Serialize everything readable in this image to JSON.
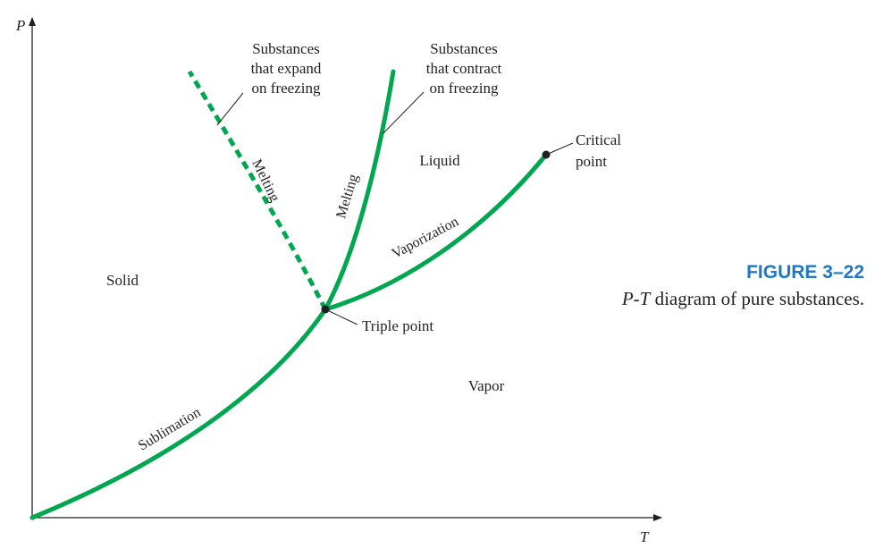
{
  "axes": {
    "x_label": "T",
    "y_label": "P"
  },
  "regions": {
    "solid": "Solid",
    "liquid": "Liquid",
    "vapor": "Vapor"
  },
  "curves": {
    "sublimation": "Sublimation",
    "vaporization": "Vaporization",
    "melting_expand": "Melting",
    "melting_contract": "Melting"
  },
  "callouts": {
    "expand": [
      "Substances",
      "that expand",
      "on freezing"
    ],
    "contract": [
      "Substances",
      "that contract",
      "on freezing"
    ],
    "critical": [
      "Critical",
      "point"
    ],
    "triple": "Triple point"
  },
  "caption": {
    "number": "FIGURE 3–22",
    "text_italic": "P-T",
    "text_rest": " diagram of pure substances."
  },
  "colors": {
    "curve": "#00a650",
    "accent": "#1f78c1",
    "ink": "#231f20"
  }
}
